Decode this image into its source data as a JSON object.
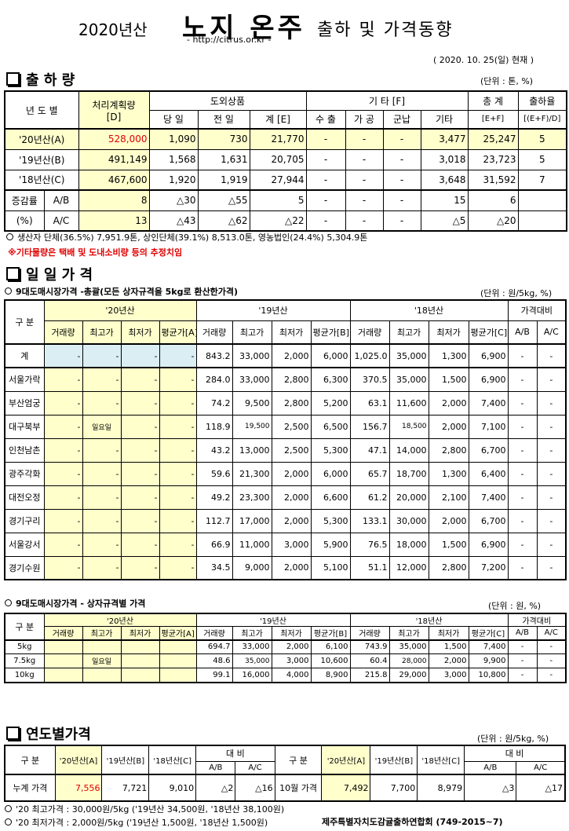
{
  "header": {
    "year_label": "2020년산",
    "main_title": "노지 온주",
    "sub_title": "출하 및 가격동향",
    "url": "- http://citrus.or.kr -",
    "date": "( 2020. 10. 25(일) 현재 )"
  },
  "shipment": {
    "title": "출 하 량",
    "unit": "(단위 : 톤, %)",
    "headers": {
      "year": "년 도 별",
      "plan": "처리계획량",
      "plan_sub": "[D]",
      "domestic": "도외상품",
      "dom_cols": [
        "당 일",
        "전 일",
        "계 [E]"
      ],
      "etc": "기 타 [F]",
      "etc_cols": [
        "수 출",
        "가 공",
        "군납",
        "기타"
      ],
      "total": "총 계",
      "total_sub": "[E+F]",
      "rate": "출하율",
      "rate_sub": "[(E+F)/D]"
    },
    "rows": [
      [
        "'20년산(A)",
        "528,000",
        "1,090",
        "730",
        "21,770",
        "-",
        "-",
        "-",
        "3,477",
        "25,247",
        "5"
      ],
      [
        "'19년산(B)",
        "491,149",
        "1,568",
        "1,631",
        "20,705",
        "-",
        "-",
        "-",
        "3,018",
        "23,723",
        "5"
      ],
      [
        "'18년산(C)",
        "467,600",
        "1,920",
        "1,919",
        "27,944",
        "-",
        "-",
        "-",
        "3,648",
        "31,592",
        "7"
      ]
    ],
    "change_label": "증감률",
    "change_pct": "(%)",
    "change_rows": [
      [
        "A/B",
        "8",
        "△30",
        "△55",
        "5",
        "-",
        "-",
        "-",
        "15",
        "6",
        ""
      ],
      [
        "A/C",
        "13",
        "△43",
        "△62",
        "△22",
        "-",
        "-",
        "-",
        "△5",
        "△20",
        ""
      ]
    ],
    "note1": "생산자 단체(36.5%) 7,951.9톤,  상인단체(39.1%) 8,513.0톤,  영농법인(24.4%) 5,304.9톤",
    "note2": "※기타물량은 택배 및 도내소비량 등의 추정치임"
  },
  "daily": {
    "title": "일 일 가 격",
    "sub": "9대도매시장가격 -총괄(모든 상자규격을 5kg로 환산한가격)",
    "unit": "(단위 : 원/5kg, %)",
    "h_gubun": "구 분",
    "h_y20": "'20년산",
    "h_y19": "'19년산",
    "h_y18": "'18년산",
    "h_cmp": "가격대비",
    "cols20": [
      "거래량",
      "최고가",
      "최저가",
      "평균가[A]"
    ],
    "cols19": [
      "거래량",
      "최고가",
      "최저가",
      "평균가[B]"
    ],
    "cols18": [
      "거래량",
      "최고가",
      "최저가",
      "평균가[C]"
    ],
    "cmp_cols": [
      "A/B",
      "A/C"
    ],
    "rows": [
      [
        "계",
        "-",
        "-",
        "-",
        "-",
        "843.2",
        "33,000",
        "2,000",
        "6,000",
        "1,025.0",
        "35,000",
        "1,300",
        "6,900",
        "-",
        "-"
      ],
      [
        "서울가락",
        "-",
        "-",
        "-",
        "-",
        "284.0",
        "33,000",
        "2,800",
        "6,300",
        "370.5",
        "35,000",
        "1,500",
        "6,900",
        "-",
        "-"
      ],
      [
        "부산엄궁",
        "-",
        "-",
        "-",
        "-",
        "74.2",
        "9,500",
        "2,800",
        "5,200",
        "63.1",
        "11,600",
        "2,000",
        "7,400",
        "-",
        "-"
      ],
      [
        "대구북부",
        "-",
        "일요일",
        "-",
        "-",
        "118.9",
        "19,500",
        "2,500",
        "6,500",
        "156.7",
        "18,500",
        "2,000",
        "7,100",
        "-",
        "-"
      ],
      [
        "인천남촌",
        "-",
        "-",
        "-",
        "-",
        "43.2",
        "13,000",
        "2,500",
        "5,300",
        "47.1",
        "14,000",
        "2,800",
        "6,700",
        "-",
        "-"
      ],
      [
        "광주각화",
        "-",
        "-",
        "-",
        "-",
        "59.6",
        "21,300",
        "2,000",
        "6,000",
        "65.7",
        "18,700",
        "1,300",
        "6,400",
        "-",
        "-"
      ],
      [
        "대전오정",
        "-",
        "-",
        "-",
        "-",
        "49.2",
        "23,300",
        "2,000",
        "6,600",
        "61.2",
        "20,000",
        "2,100",
        "7,400",
        "-",
        "-"
      ],
      [
        "경기구리",
        "-",
        "-",
        "-",
        "-",
        "112.7",
        "17,000",
        "2,000",
        "5,300",
        "133.1",
        "30,000",
        "2,000",
        "6,700",
        "-",
        "-"
      ],
      [
        "서울강서",
        "-",
        "-",
        "-",
        "-",
        "66.9",
        "11,000",
        "3,000",
        "5,900",
        "76.5",
        "18,000",
        "1,500",
        "6,900",
        "-",
        "-"
      ],
      [
        "경기수원",
        "-",
        "-",
        "-",
        "-",
        "34.5",
        "9,000",
        "2,000",
        "5,100",
        "51.1",
        "12,000",
        "2,800",
        "7,200",
        "-",
        "-"
      ]
    ]
  },
  "box": {
    "sub": "9대도매시장가격 - 상자규격별 가격",
    "unit": "(단위 : 원, %)",
    "rows": [
      [
        "5kg",
        "",
        "",
        "",
        "",
        "694.7",
        "33,000",
        "2,000",
        "6,100",
        "743.9",
        "35,000",
        "1,500",
        "7,400",
        "-",
        "-"
      ],
      [
        "7.5kg",
        "",
        "일요일",
        "",
        "",
        "48.6",
        "35,000",
        "3,000",
        "10,600",
        "60.4",
        "28,000",
        "2,000",
        "9,900",
        "-",
        "-"
      ],
      [
        "10kg",
        "",
        "",
        "",
        "",
        "99.1",
        "16,000",
        "4,000",
        "8,900",
        "215.8",
        "29,000",
        "3,000",
        "10,800",
        "-",
        "-"
      ]
    ]
  },
  "annual": {
    "title": "연도별가격",
    "unit": "(단위 : 원/5kg, %)",
    "h_gubun": "구 분",
    "h_cols": [
      "'20년산[A]",
      "'19년산[B]",
      "'18년산[C]"
    ],
    "h_cmp": "대 비",
    "cmp_cols": [
      "A/B",
      "A/C"
    ],
    "left": [
      "누계 가격",
      "7,556",
      "7,721",
      "9,010",
      "△2",
      "△16"
    ],
    "right": [
      "10월 가격",
      "7,492",
      "7,700",
      "8,979",
      "△3",
      "△17"
    ],
    "note1": "'20 최고가격 : 30,000원/5kg ('19년산 34,500원,  '18년산 38,100원)",
    "note2": "'20 최저가격 :  2,000원/5kg ('19년산  1,500원,  '18년산  1,500원)",
    "org": "제주특별자치도감귤출하연합회 (749-2015~7)"
  }
}
